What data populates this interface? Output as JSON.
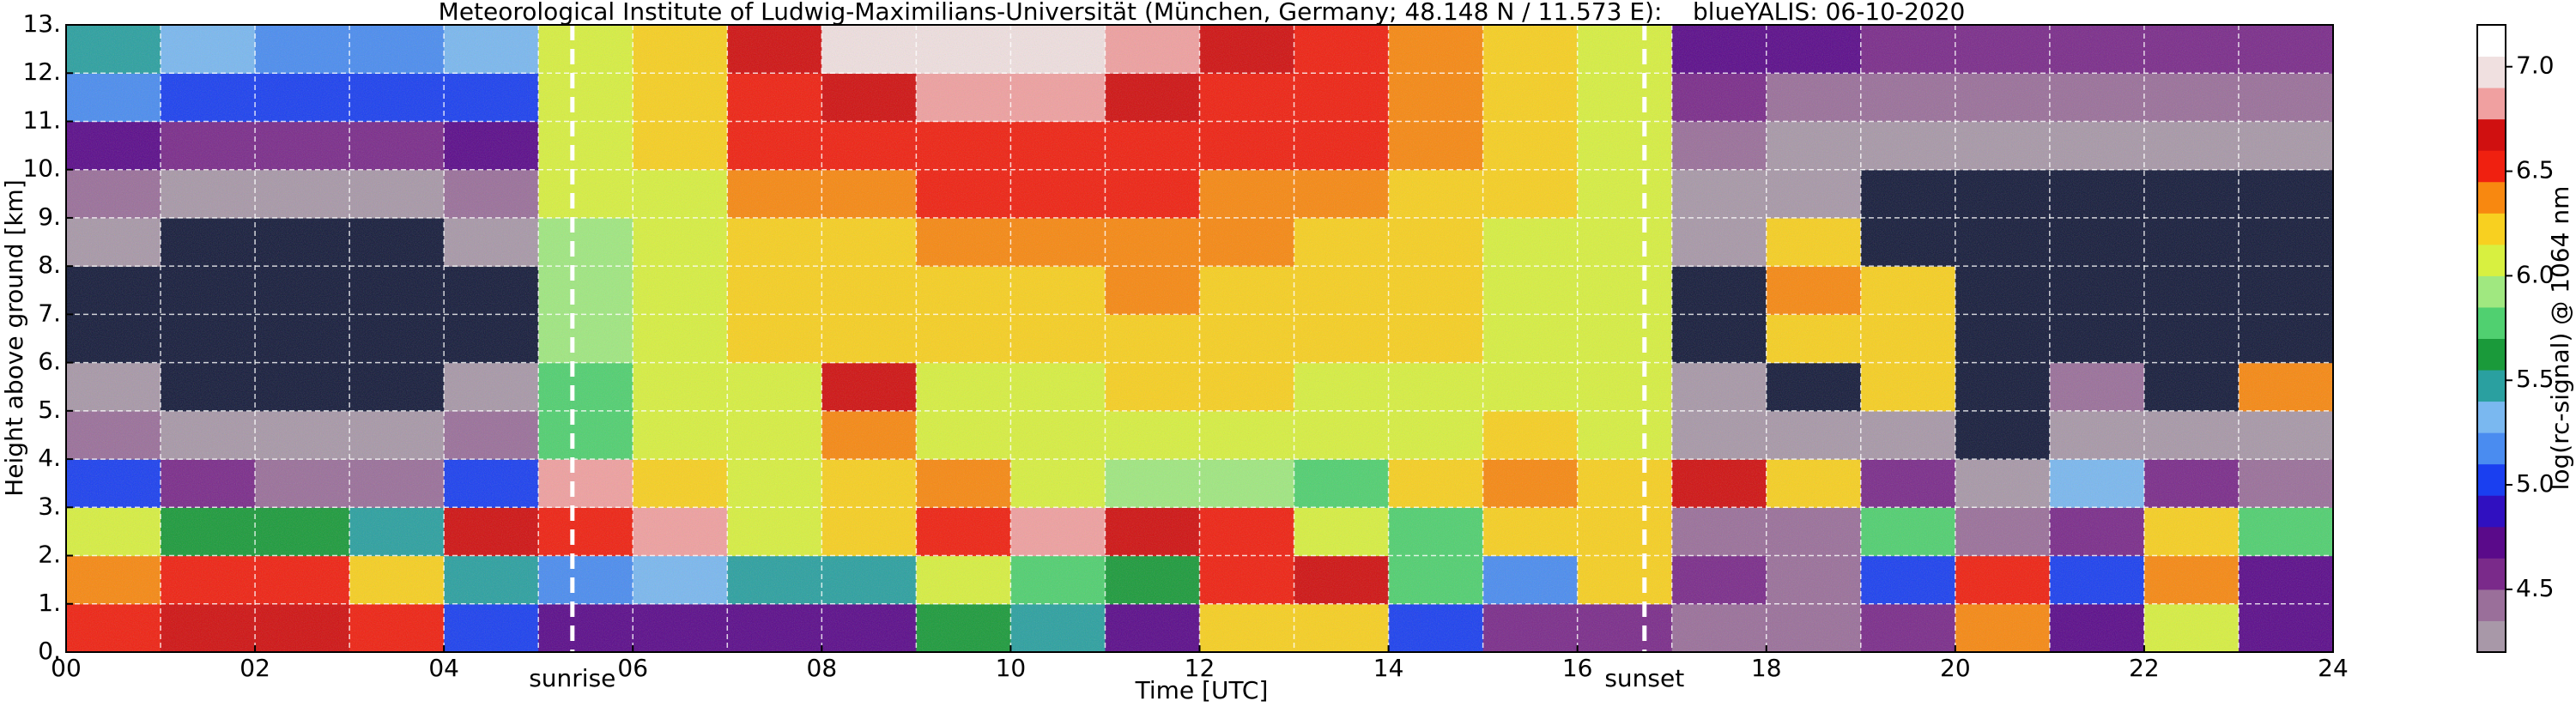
{
  "chart_data": {
    "type": "heatmap",
    "title": "Meteorological Institute of Ludwig-Maximilians-Universität (München, Germany; 48.148 N / 11.573 E):    blueYALIS: 06-10-2020",
    "xlabel": "Time [UTC]",
    "ylabel": "Height above ground [km]",
    "xlim": [
      0,
      24
    ],
    "xticks": [
      {
        "value": 0,
        "label": "00"
      },
      {
        "value": 2,
        "label": "02"
      },
      {
        "value": 4,
        "label": "04"
      },
      {
        "value": 6,
        "label": "06"
      },
      {
        "value": 8,
        "label": "08"
      },
      {
        "value": 10,
        "label": "10"
      },
      {
        "value": 12,
        "label": "12"
      },
      {
        "value": 14,
        "label": "14"
      },
      {
        "value": 16,
        "label": "16"
      },
      {
        "value": 18,
        "label": "18"
      },
      {
        "value": 20,
        "label": "20"
      },
      {
        "value": 22,
        "label": "22"
      },
      {
        "value": 24,
        "label": "24"
      }
    ],
    "xminorticks": [
      1,
      3,
      5,
      7,
      9,
      11,
      13,
      15,
      17,
      19,
      21,
      23
    ],
    "ylim": [
      0,
      13
    ],
    "yticks": [
      {
        "value": 0,
        "label": "0."
      },
      {
        "value": 1,
        "label": "1."
      },
      {
        "value": 2,
        "label": "2."
      },
      {
        "value": 3,
        "label": "3."
      },
      {
        "value": 4,
        "label": "4."
      },
      {
        "value": 5,
        "label": "5."
      },
      {
        "value": 6,
        "label": "6."
      },
      {
        "value": 7,
        "label": "7."
      },
      {
        "value": 8,
        "label": "8."
      },
      {
        "value": 9,
        "label": "9."
      },
      {
        "value": 10,
        "label": "10."
      },
      {
        "value": 11,
        "label": "11."
      },
      {
        "value": 12,
        "label": "12."
      },
      {
        "value": 13,
        "label": "13."
      }
    ],
    "grid": true,
    "events": [
      {
        "x": 5.36,
        "label": "sunrise"
      },
      {
        "x": 16.71,
        "label": "sunset"
      }
    ],
    "z": [
      [
        6.6,
        6.7,
        6.7,
        6.6,
        5.0,
        4.8,
        4.8,
        4.8,
        4.8,
        5.6,
        5.5,
        4.8,
        6.2,
        6.2,
        5.0,
        4.6,
        4.6,
        4.5,
        4.5,
        4.6,
        6.4,
        4.7,
        6.0,
        4.8
      ],
      [
        6.4,
        6.5,
        6.5,
        6.3,
        5.5,
        5.2,
        5.3,
        5.5,
        5.5,
        6.0,
        5.7,
        5.6,
        6.5,
        6.7,
        5.7,
        5.2,
        6.2,
        4.6,
        4.5,
        5.0,
        6.6,
        5.0,
        6.4,
        4.8
      ],
      [
        6.0,
        5.6,
        5.6,
        5.5,
        6.7,
        6.6,
        6.8,
        6.0,
        6.2,
        6.5,
        6.8,
        6.7,
        6.6,
        6.0,
        5.8,
        6.3,
        6.2,
        4.5,
        4.5,
        5.8,
        4.4,
        4.6,
        6.3,
        5.7
      ],
      [
        5.0,
        4.6,
        4.5,
        4.5,
        5.0,
        6.8,
        6.2,
        6.0,
        6.3,
        6.4,
        6.0,
        5.9,
        5.9,
        5.8,
        6.2,
        6.4,
        6.3,
        6.7,
        6.2,
        4.6,
        4.3,
        5.3,
        4.6,
        4.4
      ],
      [
        4.5,
        4.3,
        4.3,
        4.3,
        4.4,
        5.8,
        6.0,
        6.1,
        6.4,
        6.0,
        6.0,
        6.1,
        6.1,
        6.0,
        6.1,
        6.2,
        6.0,
        4.3,
        4.2,
        4.2,
        4.1,
        4.3,
        4.3,
        4.3
      ],
      [
        4.2,
        4.1,
        4.1,
        4.1,
        4.2,
        5.8,
        6.0,
        6.1,
        6.7,
        6.1,
        6.1,
        6.2,
        6.2,
        6.1,
        6.1,
        6.1,
        6.0,
        4.2,
        4.1,
        6.3,
        4.0,
        4.4,
        4.1,
        6.4
      ],
      [
        4.0,
        4.0,
        4.0,
        4.0,
        4.1,
        5.9,
        6.0,
        6.3,
        6.2,
        6.2,
        6.3,
        6.3,
        6.3,
        6.2,
        6.2,
        6.1,
        6.0,
        4.1,
        6.2,
        6.3,
        4.0,
        4.0,
        4.0,
        4.1
      ],
      [
        4.1,
        4.0,
        4.0,
        4.0,
        4.1,
        5.9,
        6.0,
        6.3,
        6.3,
        6.3,
        6.3,
        6.4,
        6.3,
        6.3,
        6.2,
        6.1,
        6.0,
        4.1,
        6.4,
        6.2,
        4.0,
        4.0,
        4.0,
        4.0
      ],
      [
        4.2,
        4.1,
        4.1,
        4.1,
        4.2,
        5.9,
        6.1,
        6.3,
        6.3,
        6.4,
        6.4,
        6.4,
        6.4,
        6.3,
        6.2,
        6.1,
        6.0,
        4.2,
        6.3,
        4.1,
        4.0,
        4.0,
        4.0,
        4.0
      ],
      [
        4.4,
        4.3,
        4.3,
        4.3,
        4.4,
        6.0,
        6.1,
        6.4,
        6.4,
        6.5,
        6.5,
        6.5,
        6.4,
        6.4,
        6.3,
        6.2,
        6.1,
        4.3,
        4.2,
        4.1,
        4.1,
        4.1,
        4.1,
        4.1
      ],
      [
        4.8,
        4.6,
        4.6,
        4.6,
        4.8,
        6.0,
        6.2,
        6.5,
        6.5,
        6.6,
        6.6,
        6.6,
        6.5,
        6.5,
        6.4,
        6.3,
        6.1,
        4.4,
        4.3,
        4.2,
        4.2,
        4.2,
        4.2,
        4.2
      ],
      [
        5.2,
        5.0,
        5.0,
        5.0,
        5.1,
        6.1,
        6.2,
        6.6,
        6.7,
        6.8,
        6.8,
        6.7,
        6.6,
        6.6,
        6.4,
        6.3,
        6.1,
        4.6,
        4.5,
        4.4,
        4.4,
        4.4,
        4.4,
        4.4
      ],
      [
        5.4,
        5.3,
        5.2,
        5.2,
        5.3,
        6.1,
        6.2,
        6.7,
        6.9,
        7.0,
        6.9,
        6.8,
        6.7,
        6.6,
        6.4,
        6.3,
        6.1,
        4.8,
        4.7,
        4.6,
        4.6,
        4.6,
        4.6,
        4.6
      ]
    ],
    "clabel": "log(rc-signal) @ 1064 nm",
    "clim": [
      4.2,
      7.2
    ],
    "cticks": [
      4.5,
      {
        "value": 5.0,
        "label": "5.0"
      },
      5.5,
      {
        "value": 6.0,
        "label": "6.0"
      },
      6.5,
      {
        "value": 7.0,
        "label": "7.0"
      }
    ],
    "colormap": [
      "#a898a8",
      "#9a6f9a",
      "#7a2a8a",
      "#5a0a8a",
      "#3010c0",
      "#1a3ff0",
      "#4a8cf0",
      "#7ab8f0",
      "#2aa0a0",
      "#1a9a3a",
      "#50d070",
      "#a0e880",
      "#d8f040",
      "#f8d020",
      "#f88810",
      "#f02010",
      "#d01010",
      "#f0a0a0",
      "#f0e0e0",
      "#ffffff"
    ],
    "under_color": "#141a3a"
  }
}
